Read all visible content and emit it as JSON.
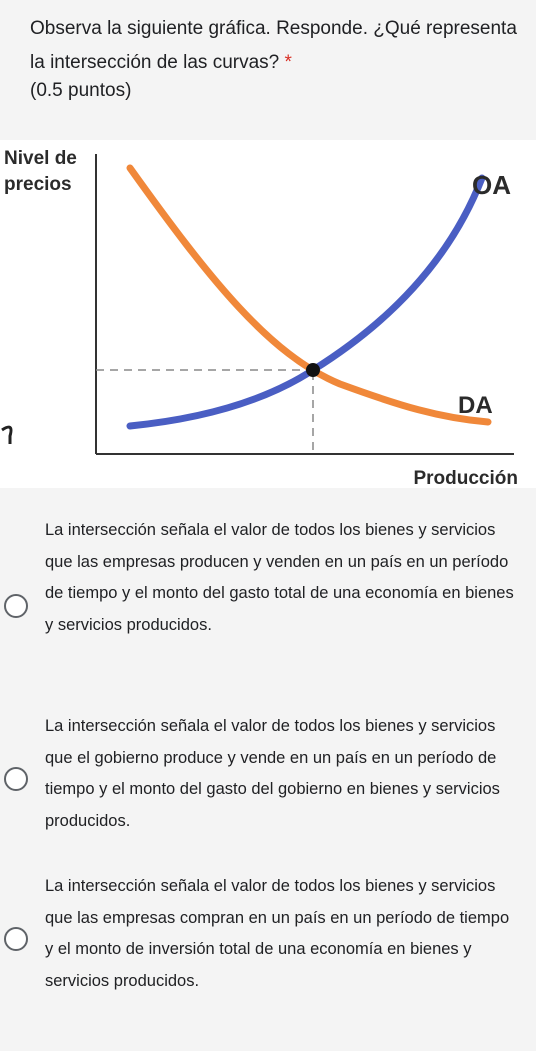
{
  "question": {
    "text": "Observa la siguiente gráfica. Responde. ¿Qué representa la intersección de las curvas?",
    "required_mark": "*",
    "points": "(0.5 puntos)"
  },
  "chart_data": {
    "type": "line",
    "ylabel_line1": "Nivel de",
    "ylabel_line2": "precios",
    "xlabel": "Producción",
    "series": [
      {
        "name": "OA",
        "color": "#4a5ec3",
        "shape": "increasing convex"
      },
      {
        "name": "DA",
        "color": "#f0883a",
        "shape": "decreasing convex"
      }
    ],
    "intersection_marked": true,
    "guide_lines": "dashed"
  },
  "options": [
    {
      "text": "La intersección señala el valor de todos los bienes y servicios que las empresas producen y venden en un país en un período de tiempo y el monto del gasto total de una economía en bienes y servicios producidos."
    },
    {
      "text": "La intersección señala el valor de todos los bienes y servicios que el gobierno produce y vende en un país en un período de tiempo y el monto del gasto del gobierno en bienes y servicios producidos."
    },
    {
      "text": "La intersección señala el valor de todos los bienes y servicios que las empresas compran en un país en un período de tiempo y el monto de inversión total de una economía en bienes y servicios producidos."
    }
  ]
}
